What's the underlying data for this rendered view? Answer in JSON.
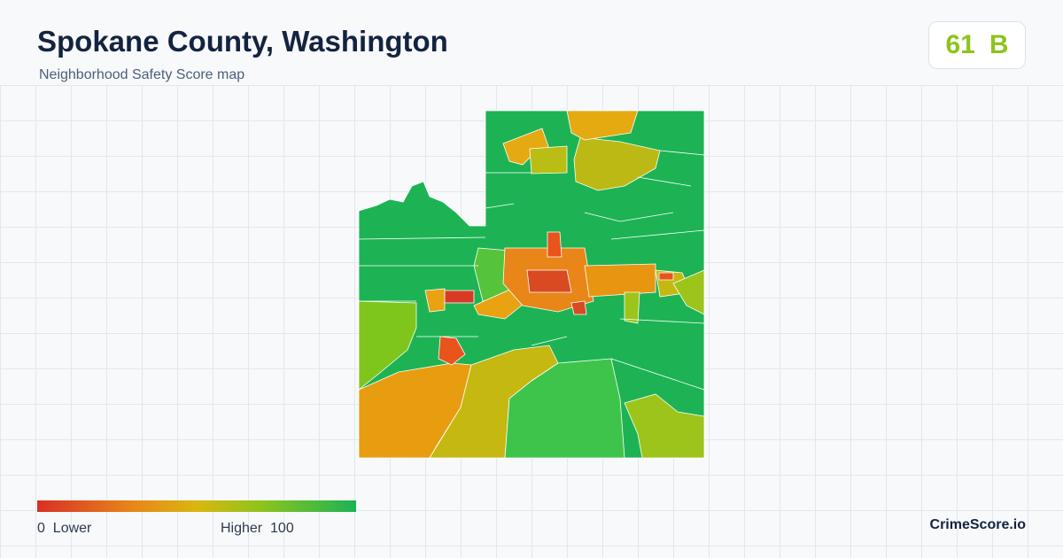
{
  "header": {
    "title": "Spokane County, Washington",
    "subtitle": "Neighborhood Safety Score map"
  },
  "score": {
    "value": 61,
    "grade": "B"
  },
  "legend": {
    "min": 0,
    "min_label": "Lower",
    "max_label": "Higher",
    "max": 100
  },
  "brand": "CrimeScore.io"
}
